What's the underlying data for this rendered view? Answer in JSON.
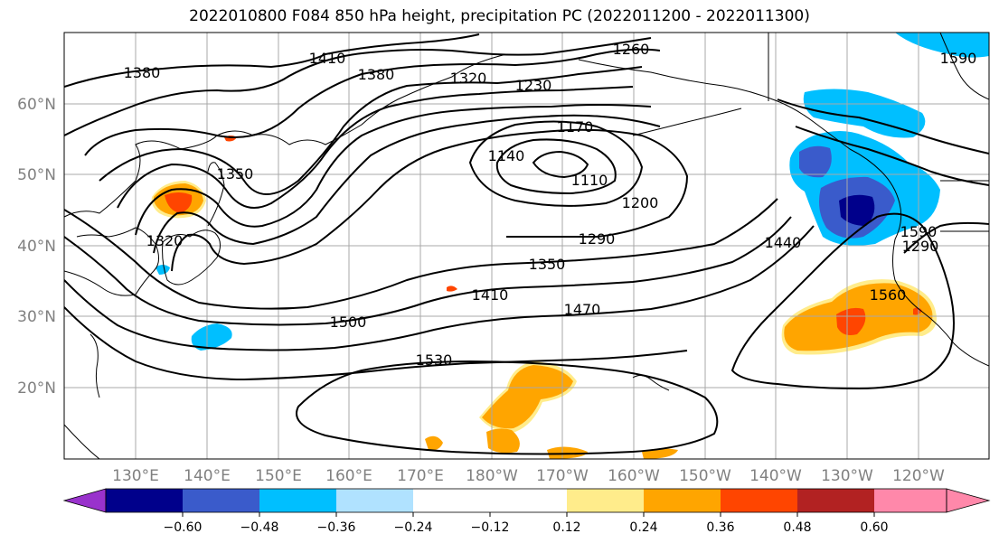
{
  "title": "2022010800 F084 850 hPa height, precipitation PC (2022011200 - 2022011300)",
  "map": {
    "lat_labels": [
      "60°N",
      "50°N",
      "40°N",
      "30°N",
      "20°N"
    ],
    "lon_labels": [
      "130°E",
      "140°E",
      "150°E",
      "160°E",
      "170°E",
      "180°W",
      "170°W",
      "160°W",
      "150°W",
      "140°W",
      "130°W",
      "120°W"
    ],
    "contour_labels": [
      "1380",
      "1410",
      "1380",
      "1320",
      "1260",
      "1230",
      "1170",
      "1140",
      "1110",
      "1200",
      "1290",
      "1350",
      "1410",
      "1470",
      "1500",
      "1530",
      "1440",
      "1560",
      "1590",
      "1320",
      "1350",
      "1590",
      "1290"
    ]
  },
  "colorbar": {
    "colors": [
      "#9932CC",
      "#00008B",
      "#3A5BCB",
      "#00BFFF",
      "#B0E2FF",
      "#FFFFFF",
      "#FFFFFF",
      "#FFEC8B",
      "#FFA500",
      "#FF4500",
      "#B22222",
      "#FF88AA"
    ],
    "ticks": [
      "−0.60",
      "−0.48",
      "−0.36",
      "−0.24",
      "−0.12",
      "0.12",
      "0.24",
      "0.36",
      "0.48",
      "0.60"
    ]
  }
}
